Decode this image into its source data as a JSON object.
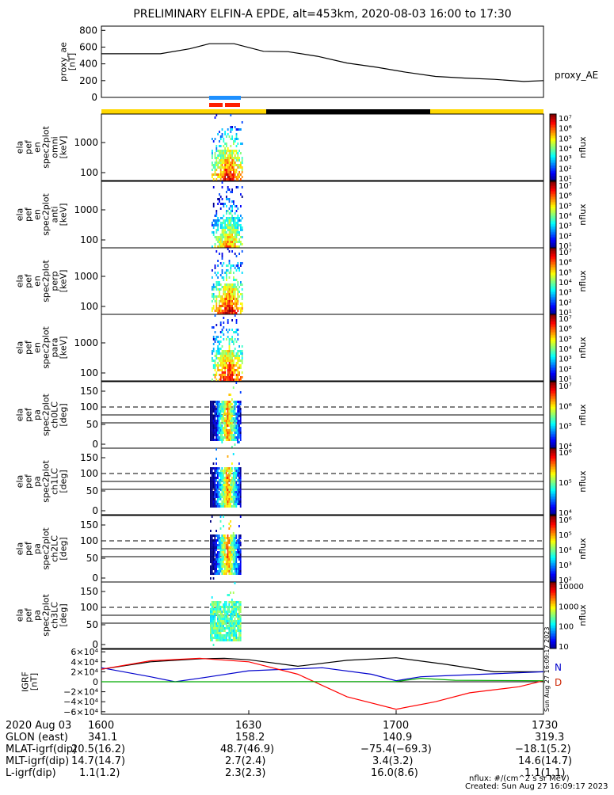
{
  "title": "PRELIMINARY ELFIN-A EPDE, alt=453km, 2020-08-03 16:00 to 17:30",
  "colors": {
    "bar_yellow": "#ffd700",
    "bar_black": "#000000",
    "sector_blue": "#1e90ff",
    "sector_red": "#ff2000",
    "n_label": "#0000cc",
    "d_label": "#cc2200"
  },
  "chart_data": [
    {
      "type": "line",
      "panel": "proxy_ae",
      "ylabel": [
        "proxy_ae",
        "[nT]"
      ],
      "ylim": [
        0,
        850
      ],
      "yticks": [
        "800",
        "600",
        "400",
        "200",
        "0"
      ],
      "legend": "proxy_AE",
      "x_minutes": [
        0,
        12,
        18,
        22,
        27,
        33,
        38,
        44,
        50,
        56,
        62,
        68,
        74,
        80,
        86,
        90
      ],
      "values": [
        520,
        520,
        580,
        640,
        640,
        550,
        545,
        490,
        410,
        360,
        300,
        250,
        230,
        215,
        190,
        200
      ]
    },
    {
      "type": "heatmap",
      "panels": [
        {
          "name": "spec2plot omni",
          "ylabel": [
            "ela",
            "pef",
            "en",
            "spec2plot",
            "omni",
            "[keV]"
          ],
          "yticks": [
            "1000",
            "100"
          ],
          "cbar_label": "nflux",
          "cbar_ticks": [
            "10^7",
            "10^6",
            "10^5",
            "10^4",
            "10^3",
            "10^2",
            "10^1"
          ]
        },
        {
          "name": "spec2plot anti",
          "ylabel": [
            "ela",
            "pef",
            "en",
            "spec2plot",
            "anti",
            "[keV]"
          ],
          "yticks": [
            "1000",
            "100"
          ],
          "cbar_label": "nflux",
          "cbar_ticks": [
            "10^7",
            "10^6",
            "10^5",
            "10^4",
            "10^3",
            "10^2",
            "10^1"
          ]
        },
        {
          "name": "spec2plot perp",
          "ylabel": [
            "ela",
            "pef",
            "en",
            "spec2plot",
            "perp",
            "[keV]"
          ],
          "yticks": [
            "1000",
            "100"
          ],
          "cbar_label": "nflux",
          "cbar_ticks": [
            "10^7",
            "10^6",
            "10^5",
            "10^4",
            "10^3",
            "10^2",
            "10^1"
          ]
        },
        {
          "name": "spec2plot para",
          "ylabel": [
            "ela",
            "pef",
            "en",
            "spec2plot",
            "para",
            "[keV]"
          ],
          "yticks": [
            "1000",
            "100"
          ],
          "cbar_label": "nflux",
          "cbar_ticks": [
            "10^7",
            "10^6",
            "10^5",
            "10^4",
            "10^3",
            "10^2",
            "10^1"
          ]
        },
        {
          "name": "spec2plot ch0LC",
          "ylabel": [
            "ela",
            "pef",
            "pa",
            "spec2plot",
            "ch0LC",
            "[deg]"
          ],
          "yticks": [
            "150",
            "100",
            "50",
            "0"
          ],
          "cbar_label": "nflux",
          "cbar_ticks": [
            "10^7",
            "10^6",
            "10^5",
            "10^4"
          ]
        },
        {
          "name": "spec2plot ch1LC",
          "ylabel": [
            "ela",
            "pef",
            "pa",
            "spec2plot",
            "ch1LC",
            "[deg]"
          ],
          "yticks": [
            "150",
            "100",
            "50",
            "0"
          ],
          "cbar_label": "nflux",
          "cbar_ticks": [
            "10^6",
            "10^5",
            "10^4"
          ]
        },
        {
          "name": "spec2plot ch2LC",
          "ylabel": [
            "ela",
            "pef",
            "pa",
            "spec2plot",
            "ch2LC",
            "[deg]"
          ],
          "yticks": [
            "150",
            "100",
            "50",
            "0"
          ],
          "cbar_label": "nflux",
          "cbar_ticks": [
            "10^6",
            "10^5",
            "10^4",
            "10^3",
            "10^2"
          ]
        },
        {
          "name": "spec2plot ch3LC",
          "ylabel": [
            "ela",
            "pef",
            "pa",
            "spec2plot",
            "ch3LC",
            "[deg]"
          ],
          "yticks": [
            "150",
            "100",
            "50",
            "0"
          ],
          "cbar_label": "nflux",
          "cbar_ticks": [
            "10000",
            "1000",
            "100",
            "10"
          ]
        }
      ]
    },
    {
      "type": "line",
      "panel": "IGRF",
      "ylabel": [
        "IGRF",
        "[nT]"
      ],
      "ylim": [
        -65000,
        65000
      ],
      "yticks": [
        "6×10⁴",
        "4×10⁴",
        "2×10⁴",
        "0",
        "−2×10⁴",
        "−4×10⁴",
        "−6×10⁴"
      ],
      "legend": [
        "N",
        "D"
      ],
      "side_note": "Sun Aug 27 16:09:17 2023",
      "series": [
        {
          "color": "#000000",
          "x_minutes": [
            0,
            10,
            20,
            25,
            30,
            40,
            50,
            60,
            70,
            80,
            90
          ],
          "values": [
            25000,
            40000,
            46000,
            47000,
            44000,
            31000,
            43000,
            48000,
            35000,
            20000,
            20000
          ]
        },
        {
          "color": "#0000cc",
          "x_minutes": [
            0,
            10,
            15,
            22,
            30,
            45,
            55,
            60,
            65,
            70,
            80,
            90
          ],
          "values": [
            28000,
            10000,
            0,
            10000,
            22000,
            28000,
            15000,
            2000,
            10000,
            12000,
            16000,
            20000
          ]
        },
        {
          "color": "#ff0000",
          "x_minutes": [
            0,
            10,
            20,
            30,
            40,
            50,
            60,
            68,
            75,
            85,
            90
          ],
          "values": [
            25000,
            42000,
            47000,
            40000,
            15000,
            -30000,
            -55000,
            -40000,
            -22000,
            -10000,
            2000
          ]
        },
        {
          "color": "#00aa00",
          "x_minutes": [
            0,
            30,
            60,
            65,
            72,
            90
          ],
          "values": [
            0,
            0,
            500,
            7000,
            3000,
            2000
          ]
        }
      ]
    }
  ],
  "footer": {
    "rows": [
      {
        "label": "2020 Aug 03",
        "values": [
          "1600",
          "1630",
          "1700",
          "1730"
        ]
      },
      {
        "label": "GLON (east)",
        "values": [
          "341.1",
          "158.2",
          "140.9",
          "319.3"
        ]
      },
      {
        "label": "MLAT-igrf(dip)",
        "values": [
          "20.5(16.2)",
          "48.7(46.9)",
          "−75.4(−69.3)",
          "−18.1(5.2)"
        ]
      },
      {
        "label": "MLT-igrf(dip)",
        "values": [
          "14.7(14.7)",
          "2.7(2.4)",
          "3.4(3.2)",
          "14.6(14.7)"
        ]
      },
      {
        "label": "L-igrf(dip)",
        "values": [
          "1.1(1.2)",
          "2.3(2.3)",
          "16.0(8.6)",
          "1.1(1.1)"
        ]
      }
    ],
    "units_note": "nflux: #/(cm^2 s sr MeV)",
    "created": "Created: Sun Aug 27 16:09:17 2023"
  }
}
